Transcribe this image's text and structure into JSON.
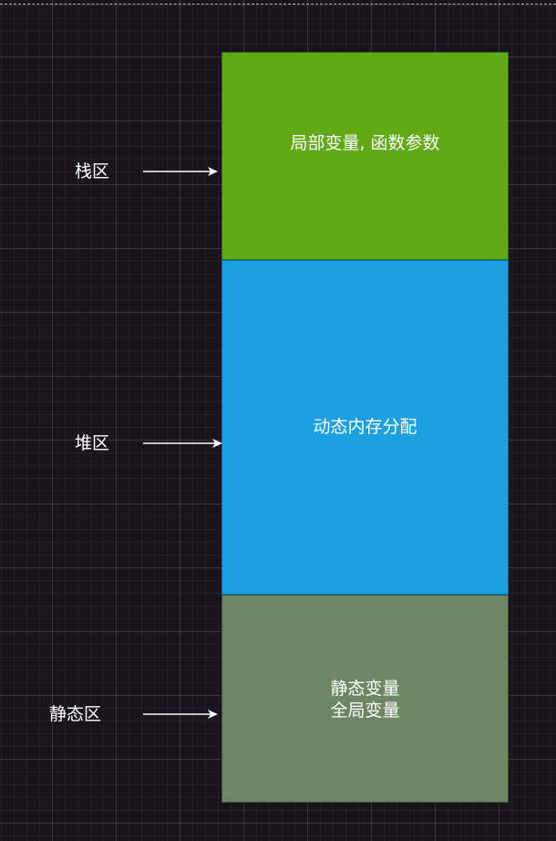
{
  "blocks": {
    "stack": "局部变量, 函数参数",
    "heap": "动态内存分配",
    "static": "静态变量\n全局变量"
  },
  "labels": {
    "stack": "栈区",
    "heap": "堆区",
    "static": "静态区"
  },
  "colors": {
    "background": "#18141d",
    "stack_fill": "#60a917",
    "heap_fill": "#1ba1e2",
    "static_fill": "#6d8764",
    "text": "#ffffff",
    "arrow": "#ffffff"
  }
}
